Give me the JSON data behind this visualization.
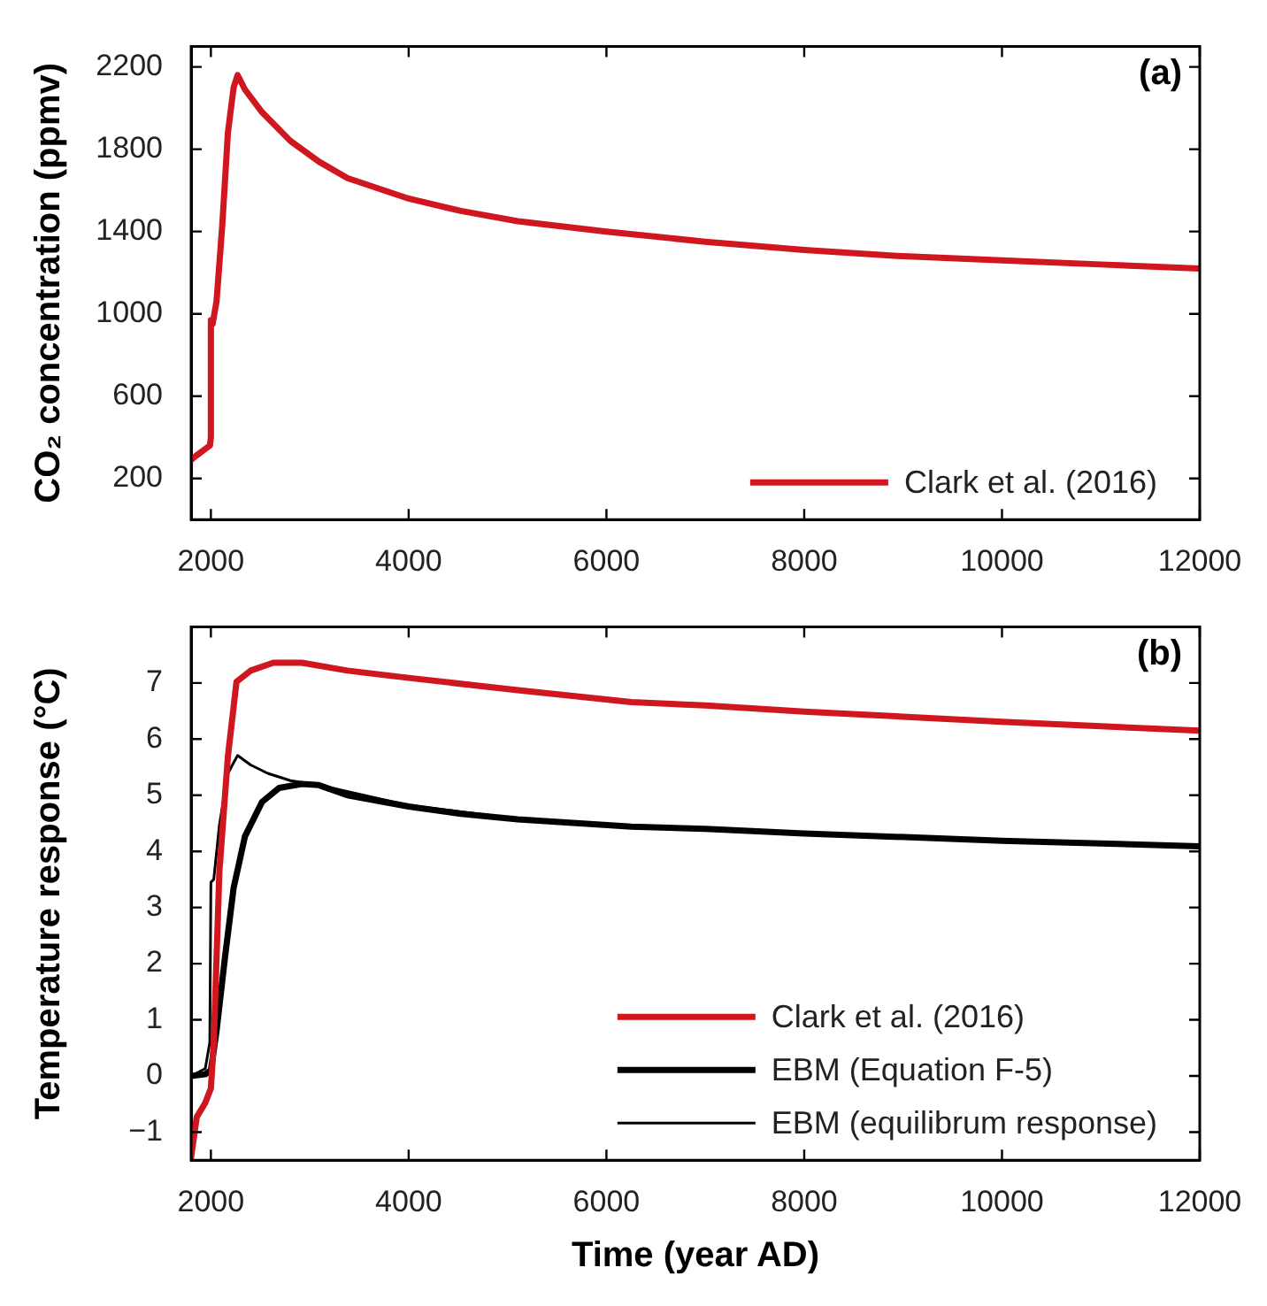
{
  "chart_data": [
    {
      "type": "line",
      "title": "(a)",
      "ylabel": "CO₂ concentration (ppmv)",
      "xlim": [
        1800,
        12000
      ],
      "xticks": [
        2000,
        4000,
        6000,
        8000,
        10000,
        12000
      ],
      "ylim": [
        0,
        2300
      ],
      "yticks": [
        200,
        600,
        1000,
        1400,
        1800,
        2200
      ],
      "grid": false,
      "legend": "bottom right",
      "marker": "none",
      "line_style": "solid",
      "series": [
        {
          "name": "Clark et al. (2016)",
          "color": "#d0161e",
          "x": [
            1800,
            1850,
            1990,
            2000,
            2000,
            2017,
            2057,
            2115,
            2172,
            2230,
            2270,
            2345,
            2517,
            2805,
            3092,
            3380,
            4000,
            4529,
            5103,
            6000,
            7000,
            8000,
            9000,
            10000,
            11000,
            12000
          ],
          "values": [
            290,
            310,
            360,
            400,
            970,
            950,
            1060,
            1430,
            1880,
            2100,
            2160,
            2090,
            1980,
            1840,
            1740,
            1660,
            1560,
            1500,
            1450,
            1400,
            1350,
            1310,
            1280,
            1260,
            1240,
            1220
          ]
        }
      ]
    },
    {
      "type": "line",
      "title": "(b)",
      "xlabel": "Time (year AD)",
      "ylabel": "Temperature response (°C)",
      "xlim": [
        1800,
        12000
      ],
      "xticks": [
        2000,
        4000,
        6000,
        8000,
        10000,
        12000
      ],
      "ylim": [
        -1.5,
        8
      ],
      "yticks": [
        {
          "value": -1,
          "label": "−1"
        },
        0,
        1,
        2,
        3,
        4,
        5,
        6,
        7
      ],
      "grid": false,
      "legend": "bottom right",
      "marker": "none",
      "line_style": "solid",
      "series": [
        {
          "name": "Clark et al. (2016)",
          "color": "#d0161e",
          "x": [
            1800,
            1857,
            1943,
            2000,
            2029,
            2086,
            2172,
            2259,
            2402,
            2632,
            2920,
            3380,
            4000,
            5103,
            6253,
            7000,
            8000,
            9000,
            10000,
            11000,
            12000
          ],
          "values": [
            -1.45,
            -0.73,
            -0.48,
            -0.22,
            0.59,
            3.65,
            5.69,
            7.02,
            7.22,
            7.36,
            7.36,
            7.22,
            7.09,
            6.87,
            6.66,
            6.6,
            6.49,
            6.4,
            6.31,
            6.23,
            6.15
          ]
        },
        {
          "name": "EBM (Equation F-5)",
          "color": "#000000",
          "x": [
            1800,
            1943,
            2000,
            2057,
            2143,
            2230,
            2345,
            2517,
            2690,
            2920,
            3092,
            3380,
            4000,
            4529,
            5103,
            6253,
            7000,
            8000,
            10000,
            12000
          ],
          "values": [
            0,
            0.03,
            0.1,
            0.8,
            2.12,
            3.35,
            4.27,
            4.88,
            5.13,
            5.2,
            5.18,
            5.0,
            4.8,
            4.67,
            4.57,
            4.44,
            4.4,
            4.32,
            4.19,
            4.09
          ]
        },
        {
          "name": "EBM (equilibrum response)",
          "color": "#000000",
          "x": [
            1800,
            1943,
            1989,
            2000,
            2029,
            2086,
            2172,
            2270,
            2402,
            2575,
            2805,
            3092,
            4000,
            5103,
            6253,
            7000,
            8000,
            10000,
            12000
          ],
          "values": [
            0,
            0.13,
            0.6,
            3.45,
            3.5,
            4.47,
            5.39,
            5.71,
            5.54,
            5.39,
            5.26,
            5.18,
            4.82,
            4.58,
            4.45,
            4.4,
            4.32,
            4.19,
            4.09
          ]
        }
      ]
    }
  ]
}
